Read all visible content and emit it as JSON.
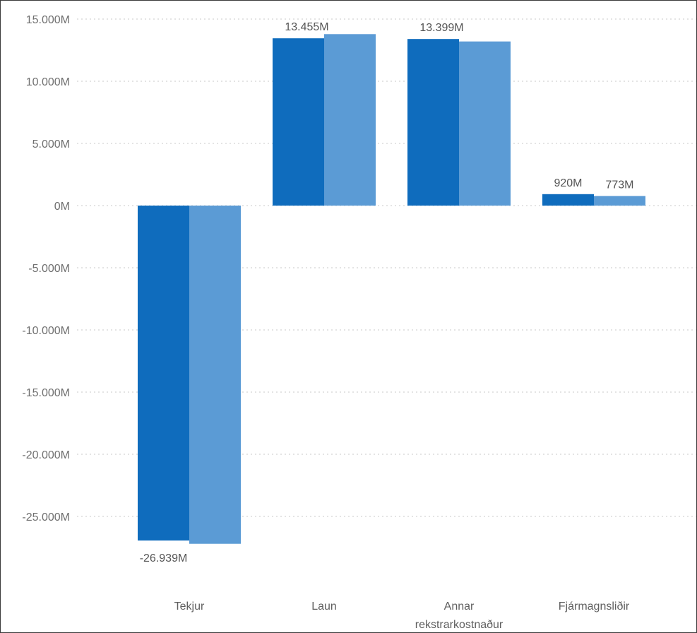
{
  "chart_data": {
    "type": "bar",
    "title": "",
    "xlabel": "",
    "ylabel": "",
    "categories": [
      [
        "Tekjur"
      ],
      [
        "Laun"
      ],
      [
        "Annar",
        "rekstrarkostnaður"
      ],
      [
        "Fjármagnsliðir"
      ]
    ],
    "series": [
      {
        "values": [
          -26939,
          13455,
          13399,
          920
        ],
        "color": "#0f6cbd"
      },
      {
        "values": [
          -27200,
          13790,
          13200,
          773
        ],
        "color": "#5b9bd5"
      }
    ],
    "data_labels": [
      {
        "series": 0,
        "category": 0,
        "text": "-26.939M"
      },
      {
        "series": 0,
        "category": 1,
        "text": "13.455M"
      },
      {
        "series": 0,
        "category": 2,
        "text": "13.399M"
      },
      {
        "series": 0,
        "category": 3,
        "text": "920M"
      },
      {
        "series": 1,
        "category": 3,
        "text": "773M"
      }
    ],
    "yticks": [
      {
        "value": 15000,
        "label": "15.000M"
      },
      {
        "value": 10000,
        "label": "10.000M"
      },
      {
        "value": 5000,
        "label": "5.000M"
      },
      {
        "value": 0,
        "label": "0M"
      },
      {
        "value": -5000,
        "label": "-5.000M"
      },
      {
        "value": -10000,
        "label": "-10.000M"
      },
      {
        "value": -15000,
        "label": "-15.000M"
      },
      {
        "value": -20000,
        "label": "-20.000M"
      },
      {
        "value": -25000,
        "label": "-25.000M"
      }
    ],
    "ylim": [
      -30000,
      15000
    ],
    "grid": true,
    "legend": "none"
  }
}
